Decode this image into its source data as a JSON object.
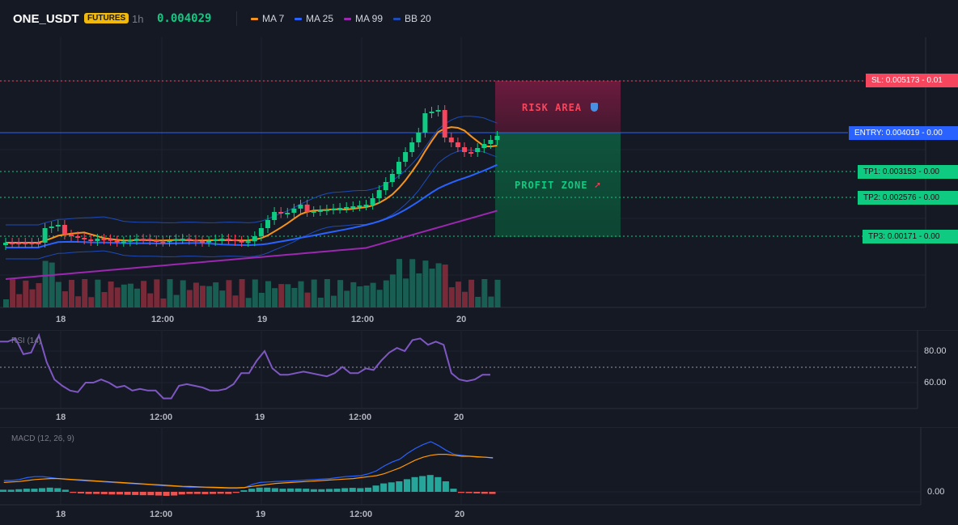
{
  "header": {
    "symbol": "ONE_USDT",
    "badge": "FUTURES",
    "timeframe": "1h",
    "price": "0.004029",
    "indicators": [
      {
        "label": "MA 7",
        "color": "#f7931a"
      },
      {
        "label": "MA 25",
        "color": "#2962ff"
      },
      {
        "label": "MA 99",
        "color": "#9c27b0"
      },
      {
        "label": "BB 20",
        "color": "#1e3a8a"
      }
    ]
  },
  "levels": {
    "sl": "SL: 0.005173 - 0.01",
    "entry": "ENTRY: 0.004019 - 0.00",
    "tp1": "TP1: 0.003153 - 0.00",
    "tp2": "TP2: 0.002576 - 0.00",
    "tp3": "TP3: 0.00171 - 0.00"
  },
  "zones": {
    "risk": "RISK AREA",
    "risk_icon": "shield-icon",
    "profit": "PROFIT ZONE",
    "profit_icon": "rocket-icon"
  },
  "time_axis": [
    "18",
    "12:00",
    "19",
    "12:00",
    "20"
  ],
  "rsi": {
    "title": "RSI (14)",
    "ticks": [
      "80.00",
      "60.00"
    ],
    "values": [
      86,
      86,
      88,
      78,
      79,
      90,
      73,
      62,
      58,
      55,
      54,
      60,
      60,
      62,
      60,
      57,
      58,
      55,
      56,
      55,
      55,
      50,
      50,
      58,
      59,
      58,
      57,
      55,
      55,
      56,
      59,
      66,
      66,
      74,
      80,
      69,
      65,
      65,
      66,
      67,
      66,
      65,
      64,
      66,
      70,
      66,
      66,
      69,
      68,
      74,
      79,
      82,
      80,
      87,
      88,
      84,
      86,
      84,
      66,
      62,
      61,
      62,
      65,
      65
    ],
    "color": "#7e57c2"
  },
  "macd": {
    "title": "MACD (12, 26, 9)",
    "ticks": [
      "0.00"
    ],
    "histogram": [
      2,
      2,
      2.5,
      3,
      3,
      3.5,
      4,
      3.5,
      2,
      -1,
      -1.5,
      -2,
      -2,
      -2.2,
      -2.5,
      -2.5,
      -2.8,
      -3,
      -3.2,
      -3.2,
      -3.5,
      -3.8,
      -3.5,
      -2.5,
      -2,
      -2,
      -2.2,
      -2,
      -1.8,
      -2,
      -1,
      1.5,
      3,
      4,
      4,
      3.5,
      3,
      3.2,
      3.2,
      3,
      2.5,
      2.5,
      2.8,
      3,
      3.5,
      3.8,
      3.5,
      4,
      6,
      8,
      9,
      10,
      12,
      14,
      15,
      16,
      14,
      10,
      3,
      -1,
      -1.2,
      -1.5,
      -1.8,
      -2
    ],
    "macd_line": [
      5,
      5,
      6,
      8,
      9,
      9,
      8,
      7,
      6,
      5.5,
      5,
      4.5,
      4,
      3.5,
      3,
      2.5,
      2,
      1.5,
      1,
      0.5,
      0,
      -0.5,
      -1,
      -1.5,
      -2,
      -2,
      -2.2,
      -2.5,
      -2.8,
      -3,
      -3,
      -2.5,
      1,
      3,
      3.5,
      4,
      4.2,
      4.5,
      5,
      5.5,
      6,
      6.5,
      7,
      8,
      9,
      9.5,
      10,
      12,
      15,
      20,
      24,
      27,
      33,
      38,
      42,
      45,
      41,
      36,
      32,
      31,
      30,
      29,
      29,
      28
    ],
    "signal_line": [
      3,
      3.5,
      4,
      5,
      6,
      6.5,
      7,
      7,
      6.5,
      6,
      5.5,
      5,
      4.5,
      4,
      3.5,
      3,
      2.5,
      2,
      1.5,
      1,
      0.5,
      0,
      -0.5,
      -1,
      -1.2,
      -1.5,
      -1.8,
      -2,
      -2.2,
      -2.5,
      -2.5,
      -2.2,
      -1,
      0,
      1,
      2,
      2.5,
      3,
      3.5,
      4,
      4.5,
      5,
      5.5,
      6,
      6.5,
      7,
      8,
      9,
      10,
      12,
      15,
      18,
      22,
      26,
      29,
      31,
      32,
      32,
      31,
      30,
      30,
      29.5,
      29,
      28.5
    ]
  },
  "colors": {
    "background": "#151924",
    "up": "#0ecb81",
    "down": "#f6465d",
    "sl": "#f6465d",
    "entry": "#2962ff",
    "tp": "#0ecb81",
    "risk_zone": "#6b1a3a",
    "profit_zone": "#0e5c40"
  }
}
